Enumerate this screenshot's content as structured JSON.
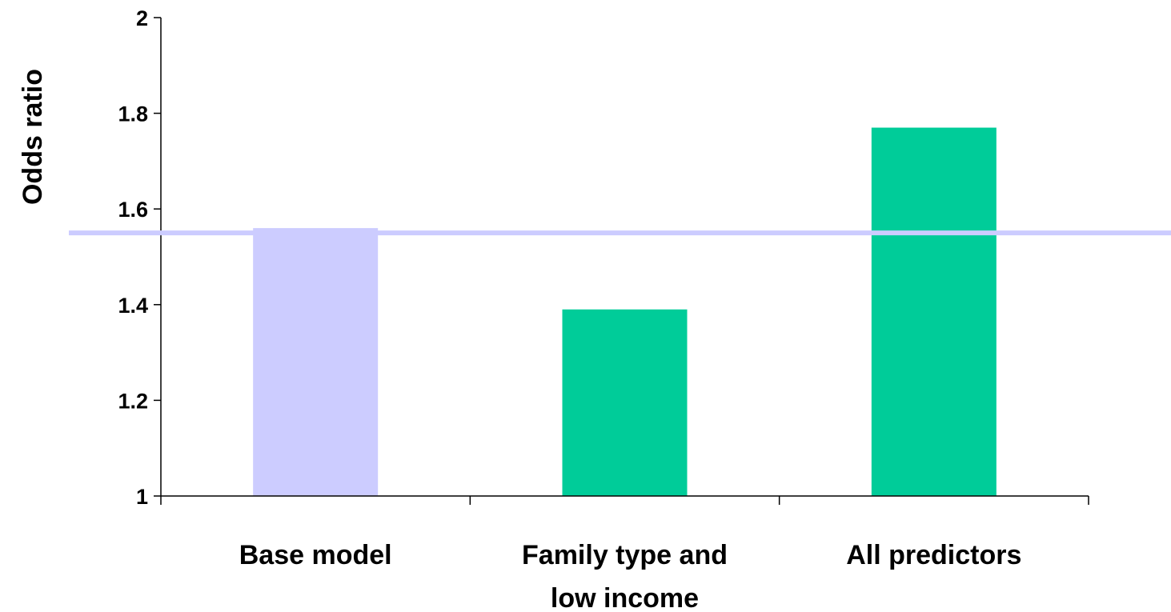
{
  "chart_data": {
    "type": "bar",
    "title": "",
    "xlabel": "",
    "ylabel": "Odds ratio",
    "categories": [
      [
        "Base model"
      ],
      [
        "Family type and",
        "low income"
      ],
      [
        "All predictors"
      ]
    ],
    "values": [
      1.56,
      1.39,
      1.77
    ],
    "bar_colors": [
      "#ccccff",
      "#00cc99",
      "#00cc99"
    ],
    "reference_line": {
      "value": 1.55,
      "color": "#ccccff"
    },
    "ylim": [
      1,
      2
    ],
    "yticks": [
      {
        "value": 1,
        "label": "1"
      },
      {
        "value": 1.2,
        "label": "1.2"
      },
      {
        "value": 1.4,
        "label": "1.4"
      },
      {
        "value": 1.6,
        "label": "1.6"
      },
      {
        "value": 1.8,
        "label": "1.8"
      },
      {
        "value": 2,
        "label": "2"
      }
    ],
    "grid": false,
    "legend": "none"
  }
}
